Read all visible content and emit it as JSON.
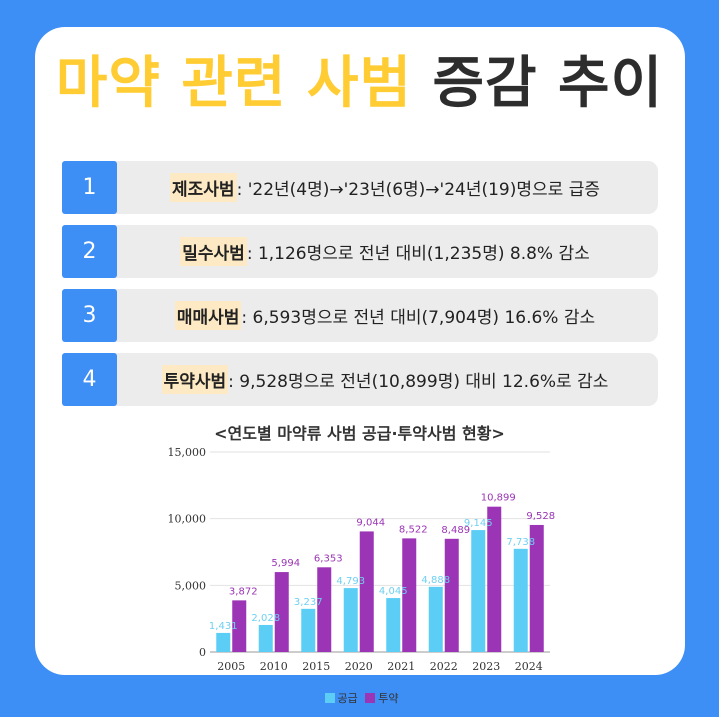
{
  "title": {
    "highlight": "마약 관련 사범",
    "rest": "증감 추이"
  },
  "items": [
    {
      "num": "1",
      "term": "제조사범",
      "text": ": '22년(4명)→'23년(6명)→'24년(19)명으로 급증"
    },
    {
      "num": "2",
      "term": "밀수사범",
      "text": ": 1,126명으로 전년 대비(1,235명) 8.8% 감소"
    },
    {
      "num": "3",
      "term": "매매사범",
      "text": ": 6,593명으로 전년 대비(7,904명) 16.6% 감소"
    },
    {
      "num": "4",
      "term": "투약사범",
      "text": ": 9,528명으로 전년(10,899명) 대비 12.6%로 감소"
    }
  ],
  "chart_title": "<연도별 마약류 사범 공급·투약사범 현황>",
  "colors": {
    "supply": "#5ccdf5",
    "dose": "#9b35b5",
    "supply_label": "#6fd0f2",
    "dose_label": "#9b35b5"
  },
  "chart_data": {
    "type": "bar",
    "categories": [
      "2005",
      "2010",
      "2015",
      "2020",
      "2021",
      "2022",
      "2023",
      "2024"
    ],
    "series": [
      {
        "name": "공급",
        "values": [
          1431,
          2028,
          3237,
          4793,
          4045,
          4888,
          9145,
          7738
        ],
        "labels": [
          "1,431",
          "2,028",
          "3,237",
          "4,793",
          "4,045",
          "4,888",
          "9,145",
          "7,738"
        ]
      },
      {
        "name": "투약",
        "values": [
          3872,
          5994,
          6353,
          9044,
          8522,
          8489,
          10899,
          9528
        ],
        "labels": [
          "3,872",
          "5,994",
          "6,353",
          "9,044",
          "8,522",
          "8,489",
          "10,899",
          "9,528"
        ]
      }
    ],
    "yticks": [
      "0",
      "5,000",
      "10,000",
      "15,000"
    ],
    "ylim": [
      0,
      15000
    ],
    "legend": [
      "공급",
      "투약"
    ]
  }
}
